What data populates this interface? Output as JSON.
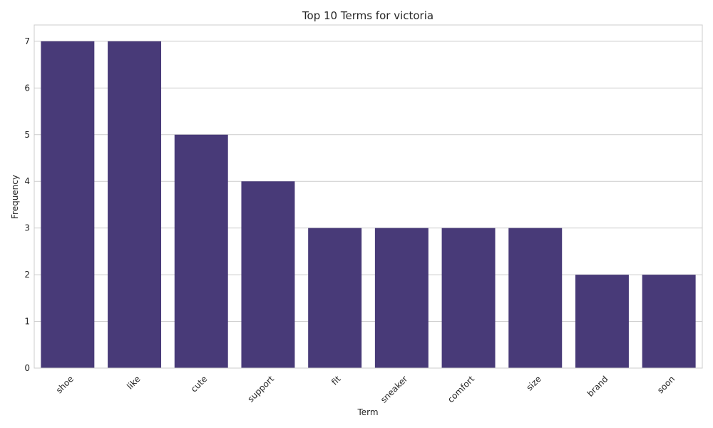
{
  "chart_data": {
    "type": "bar",
    "title": "Top 10 Terms for victoria",
    "xlabel": "Term",
    "ylabel": "Frequency",
    "categories": [
      "shoe",
      "like",
      "cute",
      "support",
      "fit",
      "sneaker",
      "comfort",
      "size",
      "brand",
      "soon"
    ],
    "values": [
      7,
      7,
      5,
      4,
      3,
      3,
      3,
      3,
      2,
      2
    ],
    "ylim": [
      0,
      7.35
    ],
    "yticks": [
      0,
      1,
      2,
      3,
      4,
      5,
      6,
      7
    ],
    "grid": true,
    "bar_color": "#483a78",
    "x_tick_rotation": "45° (right-aligned)"
  }
}
